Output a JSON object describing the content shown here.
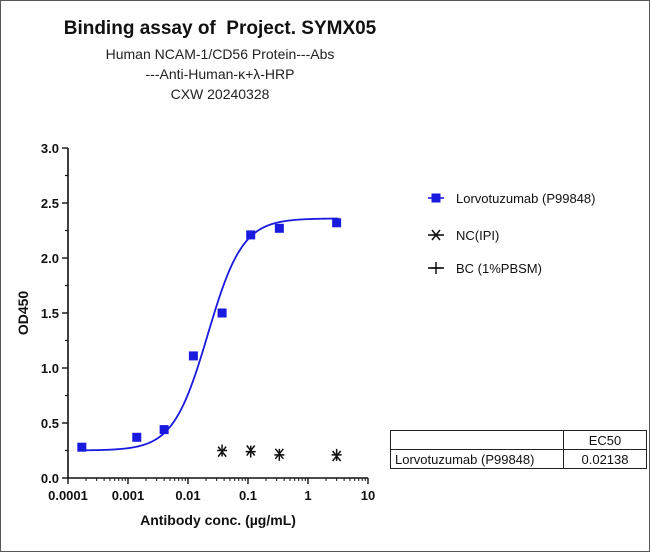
{
  "title": "Binding assay of  Project. SYMX05",
  "subtitle_lines": [
    "Human NCAM-1/CD56 Protein---Abs",
    "---Anti-Human-κ+λ-HRP",
    "CXW   20240328"
  ],
  "chart_data": {
    "type": "scatter",
    "xlabel": "Antibody conc. (µg/mL)",
    "ylabel": "OD450",
    "x_scale": "log",
    "xlim": [
      0.0001,
      10
    ],
    "ylim": [
      0,
      3.0
    ],
    "x_ticks": [
      "0.0001",
      "0.001",
      "0.01",
      "0.1",
      "1",
      "10"
    ],
    "x_tick_values": [
      0.0001,
      0.001,
      0.01,
      0.1,
      1,
      10
    ],
    "y_ticks": [
      "0.0",
      "0.5",
      "1.0",
      "1.5",
      "2.0",
      "2.5",
      "3.0"
    ],
    "y_tick_values": [
      0,
      0.5,
      1.0,
      1.5,
      2.0,
      2.5,
      3.0
    ],
    "grid": false,
    "legend_position": "right",
    "series": [
      {
        "name": "Lorvotuzumab  (P99848)",
        "marker": "square",
        "color": "#1a1adf",
        "fit": "4PL",
        "fit_params": {
          "bottom": 0.25,
          "top": 2.36,
          "ec50": 0.02138,
          "hill": 1.5
        },
        "x": [
          0.00017,
          0.0014,
          0.004,
          0.0123,
          0.037,
          0.111,
          0.333,
          3.0
        ],
        "y": [
          0.28,
          0.37,
          0.44,
          1.11,
          1.5,
          2.21,
          2.27,
          2.32
        ]
      },
      {
        "name": "NC(IPI)",
        "marker": "x",
        "color": "#111111",
        "x": [
          0.037,
          0.111,
          0.333,
          3.0
        ],
        "y": [
          0.24,
          0.25,
          0.22,
          0.2
        ]
      },
      {
        "name": "BC (1%PBSM)",
        "marker": "plus",
        "color": "#111111",
        "x": [
          0.037,
          0.111,
          0.333,
          3.0
        ],
        "y": [
          0.25,
          0.24,
          0.21,
          0.21
        ]
      }
    ],
    "table": {
      "header": [
        "",
        "EC50"
      ],
      "rows": [
        [
          "Lorvotuzumab  (P99848)",
          "0.02138"
        ]
      ]
    }
  }
}
